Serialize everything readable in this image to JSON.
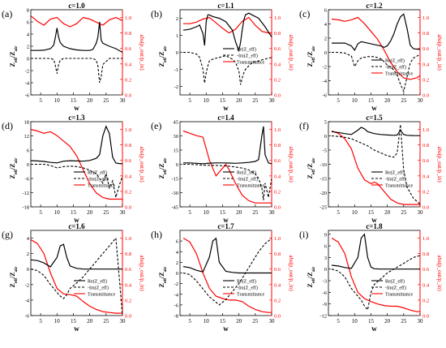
{
  "figure": {
    "x_tick_labels": [
      "5",
      "10",
      "15",
      "20",
      "25",
      "30"
    ],
    "x_label": "w",
    "left_y_label": "Z_eff/Z_air",
    "right_y_label": "abs(p_out/p_in)",
    "right_ticks": [
      "0.0",
      "0.2",
      "0.4",
      "0.6",
      "0.8",
      "1.0"
    ],
    "legend_labels": [
      "Re(Z_eff)",
      "-Im(Z_eff)",
      "Transmittance"
    ],
    "colors": {
      "re": "#000000",
      "im": "#000000",
      "trans": "#ff0000",
      "right_axis": "#ff0000"
    }
  },
  "chart_data": [
    {
      "type": "line",
      "panel": "(a)",
      "title": "c=1.0",
      "ylim": [
        -6,
        8
      ],
      "left_ticks": [
        "-6",
        "-4",
        "-2",
        "0",
        "2",
        "4",
        "6",
        "8"
      ],
      "ylim_right": [
        0,
        1.1
      ],
      "x": [
        2,
        4,
        6,
        8,
        9,
        9.5,
        10,
        10.5,
        11,
        12,
        14,
        16,
        18,
        20,
        21,
        22,
        22.5,
        23,
        23.5,
        24,
        26,
        28,
        30
      ],
      "re": [
        1.3,
        1.3,
        1.35,
        1.6,
        2.2,
        3.5,
        5.0,
        3.5,
        2.6,
        2.0,
        1.6,
        1.4,
        1.3,
        1.3,
        1.5,
        2.5,
        3.5,
        6.0,
        3.0,
        2.5,
        2.0,
        1.6,
        1.0
      ],
      "im": [
        0,
        0,
        0,
        0,
        -0.2,
        -1.2,
        -2.5,
        -1.0,
        -0.3,
        0,
        0,
        0,
        0,
        0,
        0,
        -0.3,
        -1.2,
        -4.0,
        -3.0,
        -1.0,
        0,
        0,
        0
      ],
      "x_trans": [
        2,
        4,
        6,
        8,
        10,
        12,
        14,
        16,
        18,
        20,
        22,
        24,
        26,
        28,
        30
      ],
      "trans": [
        1.02,
        0.95,
        0.9,
        0.98,
        1.0,
        0.92,
        0.88,
        0.92,
        1.0,
        0.98,
        0.94,
        0.9,
        0.97,
        1.0,
        0.96
      ]
    },
    {
      "type": "line",
      "panel": "(b)",
      "title": "c=1.1",
      "ylim": [
        -2.5,
        2.5
      ],
      "left_ticks": [
        "-2",
        "-1",
        "0",
        "1",
        "2"
      ],
      "ylim_right": [
        0,
        1.1
      ],
      "x": [
        3,
        5,
        7,
        8,
        9,
        9.5,
        10,
        10.5,
        11,
        12,
        14,
        16,
        18,
        19,
        20,
        20.5,
        21,
        21.5,
        22,
        23,
        24,
        26,
        28,
        30
      ],
      "re": [
        1.3,
        1.35,
        1.5,
        1.6,
        1.1,
        0.4,
        1.8,
        2.2,
        2.2,
        2.1,
        2.0,
        1.8,
        1.3,
        0.6,
        0.1,
        0.6,
        1.3,
        1.9,
        2.2,
        2.3,
        2.2,
        2.0,
        1.5,
        0.9
      ],
      "im": [
        0,
        0,
        -0.1,
        -0.3,
        -1.0,
        -1.8,
        -1.2,
        -0.8,
        -0.5,
        -0.4,
        -0.3,
        -0.2,
        -0.4,
        -0.6,
        -1.1,
        -1.9,
        -1.5,
        -1.2,
        -1.0,
        -0.8,
        -0.6,
        -0.5,
        -0.4,
        -0.3
      ],
      "x_trans": [
        3,
        5,
        7,
        9,
        11,
        13,
        15,
        17,
        19,
        21,
        23,
        25,
        27,
        29,
        30
      ],
      "trans": [
        0.92,
        0.92,
        0.94,
        0.98,
        1.0,
        0.93,
        0.86,
        0.8,
        0.85,
        0.95,
        1.0,
        0.9,
        0.82,
        0.8,
        0.8
      ]
    },
    {
      "type": "line",
      "panel": "(c)",
      "title": "c=1.2",
      "ylim": [
        -6,
        6
      ],
      "left_ticks": [
        "-6",
        "-4",
        "-2",
        "0",
        "2",
        "4",
        "6"
      ],
      "ylim_right": [
        0,
        1.1
      ],
      "x": [
        3,
        5,
        7,
        9,
        10,
        11,
        12,
        14,
        16,
        18,
        19,
        20,
        21,
        22,
        23,
        24,
        25,
        26,
        27,
        28,
        30
      ],
      "re": [
        1.3,
        1.3,
        1.3,
        0.9,
        0.3,
        1.2,
        1.5,
        1.3,
        1.1,
        0.9,
        0.7,
        0.9,
        1.6,
        2.6,
        4.0,
        5.0,
        5.4,
        3.4,
        1.0,
        0.5,
        0.4
      ],
      "im": [
        0,
        0,
        -0.1,
        -0.5,
        -2.0,
        -1.2,
        -0.8,
        -0.6,
        -0.6,
        -0.9,
        -1.3,
        -1.8,
        -2.1,
        -2.5,
        -3.2,
        -4.5,
        -5.5,
        -3.5,
        -1.5,
        -0.8,
        -0.3
      ],
      "x_trans": [
        3,
        5,
        7,
        9,
        11,
        13,
        15,
        17,
        19,
        21,
        23,
        25,
        27,
        29,
        30
      ],
      "trans": [
        0.98,
        0.97,
        0.95,
        0.97,
        1.0,
        0.92,
        0.82,
        0.72,
        0.58,
        0.42,
        0.3,
        0.22,
        0.2,
        0.22,
        0.25
      ]
    },
    {
      "type": "line",
      "panel": "(d)",
      "title": "c=1.3",
      "ylim": [
        -18,
        18
      ],
      "left_ticks": [
        "-18",
        "-12",
        "-6",
        "0",
        "6",
        "12",
        "18"
      ],
      "ylim_right": [
        0,
        1.1
      ],
      "x": [
        2,
        4,
        6,
        8,
        10,
        12,
        14,
        16,
        18,
        20,
        22,
        23,
        24,
        25,
        26,
        27,
        28,
        29,
        30
      ],
      "re": [
        1.5,
        1.4,
        1.2,
        0.8,
        0.6,
        1.3,
        1.5,
        1.4,
        1.3,
        1.6,
        2.5,
        4.0,
        12.0,
        16.0,
        13.0,
        3.0,
        0.5,
        0.3,
        0.2
      ],
      "im": [
        0,
        0,
        0,
        -0.5,
        -1.5,
        -1.0,
        -0.8,
        -1.0,
        -1.5,
        -2.5,
        -4.0,
        -6.0,
        -8.0,
        -4.0,
        -10.0,
        -7.0,
        -14.0,
        -9.0,
        -5.0
      ],
      "x_trans": [
        2,
        4,
        6,
        8,
        10,
        12,
        14,
        16,
        18,
        20,
        22,
        24,
        26,
        28,
        30
      ],
      "trans": [
        1.0,
        0.98,
        0.95,
        0.97,
        0.92,
        0.85,
        0.78,
        0.66,
        0.48,
        0.3,
        0.18,
        0.12,
        0.1,
        0.1,
        0.1
      ]
    },
    {
      "type": "line",
      "panel": "(e)",
      "title": "c=1.4",
      "ylim": [
        -45,
        45
      ],
      "left_ticks": [
        "-45",
        "-30",
        "-15",
        "0",
        "15",
        "30",
        "45"
      ],
      "ylim_right": [
        0,
        1.1
      ],
      "x": [
        3,
        5,
        7,
        9,
        11,
        13,
        15,
        17,
        19,
        21,
        23,
        25,
        26,
        27,
        27.5,
        28,
        29,
        30
      ],
      "re": [
        1.5,
        1.5,
        1.0,
        0.5,
        1.2,
        1.5,
        1.5,
        1.3,
        1.0,
        1.5,
        2.0,
        3.0,
        5.0,
        30.0,
        40.0,
        10.0,
        1.5,
        0.5
      ],
      "im": [
        0,
        0,
        -0.5,
        -1.0,
        -1.0,
        -1.2,
        -1.5,
        -2.0,
        -3.0,
        -4.0,
        -6.0,
        -10.0,
        -15.0,
        -25.0,
        -38.0,
        -20.0,
        -35.0,
        -15.0
      ],
      "x_trans": [
        3,
        5,
        7,
        9,
        11,
        13,
        15,
        16,
        17,
        19,
        21,
        23,
        25,
        27,
        29,
        30
      ],
      "trans": [
        0.98,
        0.95,
        0.92,
        0.9,
        0.6,
        0.4,
        0.5,
        0.55,
        0.48,
        0.3,
        0.15,
        0.08,
        0.05,
        0.05,
        0.05,
        0.05
      ]
    },
    {
      "type": "line",
      "panel": "(f)",
      "title": "c=1.5",
      "ylim": [
        -25,
        5
      ],
      "left_ticks": [
        "-25",
        "-20",
        "-15",
        "-10",
        "-5",
        "0",
        "5"
      ],
      "ylim_right": [
        0,
        1.1
      ],
      "x": [
        3,
        5,
        7,
        9,
        11,
        12,
        13,
        14,
        16,
        18,
        20,
        22,
        23,
        24,
        25,
        26,
        28,
        30
      ],
      "re": [
        1.5,
        1.2,
        0.8,
        0.5,
        2.0,
        3.0,
        2.5,
        1.5,
        0.8,
        0.5,
        0.3,
        0.2,
        0.3,
        2.0,
        0.5,
        0.2,
        0.1,
        0.1
      ],
      "im": [
        0,
        -0.2,
        -0.5,
        -1.0,
        -2.0,
        -2.5,
        -3.0,
        -3.5,
        -5.0,
        -6.0,
        -7.0,
        -7.5,
        -6.0,
        4.0,
        -12.0,
        -18.0,
        -22.0,
        -24.0
      ],
      "x_trans": [
        3,
        5,
        7,
        9,
        11,
        13,
        15,
        16,
        17,
        19,
        21,
        23,
        25,
        27,
        29,
        30
      ],
      "trans": [
        0.98,
        0.95,
        0.88,
        0.75,
        0.5,
        0.35,
        0.3,
        0.32,
        0.3,
        0.2,
        0.1,
        0.05,
        0.03,
        0.03,
        0.03,
        0.03
      ]
    },
    {
      "type": "line",
      "panel": "(g)",
      "title": "c=1.6",
      "ylim": [
        -6,
        5
      ],
      "left_ticks": [
        "-6",
        "-4",
        "-2",
        "0",
        "2",
        "4"
      ],
      "ylim_right": [
        0,
        1.1
      ],
      "x": [
        2,
        4,
        6,
        8,
        10,
        11,
        12,
        13,
        14,
        16,
        18,
        20,
        22,
        24,
        26,
        28,
        29,
        30
      ],
      "re": [
        1.2,
        1.1,
        0.8,
        0.3,
        1.5,
        3.0,
        3.2,
        1.5,
        0.4,
        0.1,
        0,
        0,
        0,
        0,
        0,
        0,
        0,
        0
      ],
      "im": [
        0,
        -0.2,
        -0.8,
        -2.0,
        -3.0,
        -3.5,
        -3.8,
        -3.3,
        -2.5,
        -1.8,
        -1.0,
        0,
        1.0,
        2.0,
        3.0,
        4.0,
        -1.0,
        -6.0
      ],
      "x_trans": [
        2,
        4,
        6,
        8,
        10,
        12,
        14,
        16,
        18,
        20,
        22,
        24,
        26,
        28,
        30
      ],
      "trans": [
        0.98,
        0.93,
        0.8,
        0.55,
        0.35,
        0.28,
        0.27,
        0.25,
        0.18,
        0.12,
        0.08,
        0.05,
        0.04,
        0.03,
        0.03
      ]
    },
    {
      "type": "line",
      "panel": "(h)",
      "title": "c=1.7",
      "ylim": [
        -8,
        8
      ],
      "left_ticks": [
        "-8",
        "-6",
        "-4",
        "-2",
        "0",
        "2",
        "4",
        "6"
      ],
      "ylim_right": [
        0,
        1.1
      ],
      "x": [
        3,
        5,
        7,
        9,
        11,
        12,
        13,
        14,
        16,
        18,
        20,
        22,
        24,
        26,
        28,
        30
      ],
      "re": [
        1.2,
        1.0,
        0.5,
        0.2,
        3.0,
        6.0,
        6.5,
        2.0,
        0.3,
        0.1,
        0,
        0,
        0,
        0,
        0,
        0
      ],
      "im": [
        0,
        -0.3,
        -1.5,
        -3.0,
        -4.5,
        -5.0,
        -5.5,
        -6.0,
        -5.0,
        -3.5,
        -2.0,
        0,
        2.0,
        4.0,
        5.5,
        6.5
      ],
      "x_trans": [
        3,
        5,
        7,
        9,
        11,
        13,
        15,
        17,
        19,
        21,
        23,
        25,
        27,
        29,
        30
      ],
      "trans": [
        1.0,
        0.95,
        0.8,
        0.55,
        0.35,
        0.25,
        0.22,
        0.2,
        0.2,
        0.18,
        0.12,
        0.08,
        0.05,
        0.04,
        0.04
      ]
    },
    {
      "type": "line",
      "panel": "(i)",
      "title": "c=1.8",
      "ylim": [
        -12,
        10
      ],
      "left_ticks": [
        "-12",
        "-9",
        "-6",
        "-3",
        "0",
        "3",
        "6",
        "9"
      ],
      "ylim_right": [
        0,
        1.1
      ],
      "x": [
        3,
        5,
        7,
        9,
        11,
        12,
        13,
        14,
        15,
        16,
        18,
        20,
        22,
        24,
        26,
        28,
        30
      ],
      "re": [
        1.0,
        0.8,
        0.4,
        0.2,
        3.0,
        8.0,
        9.0,
        3.0,
        0.5,
        0.1,
        0,
        0,
        0,
        0,
        0,
        0,
        0
      ],
      "im": [
        0,
        -0.5,
        -2.0,
        -5.0,
        -7.0,
        -8.0,
        -9.5,
        -10.5,
        -6.0,
        -4.0,
        -2.5,
        -1.0,
        0,
        1.0,
        2.0,
        3.0,
        3.5
      ],
      "x_trans": [
        3,
        5,
        7,
        9,
        11,
        13,
        15,
        17,
        19,
        21,
        23,
        25,
        27,
        29,
        30
      ],
      "trans": [
        1.0,
        0.95,
        0.8,
        0.5,
        0.3,
        0.22,
        0.18,
        0.15,
        0.13,
        0.12,
        0.12,
        0.1,
        0.07,
        0.05,
        0.05
      ]
    }
  ]
}
